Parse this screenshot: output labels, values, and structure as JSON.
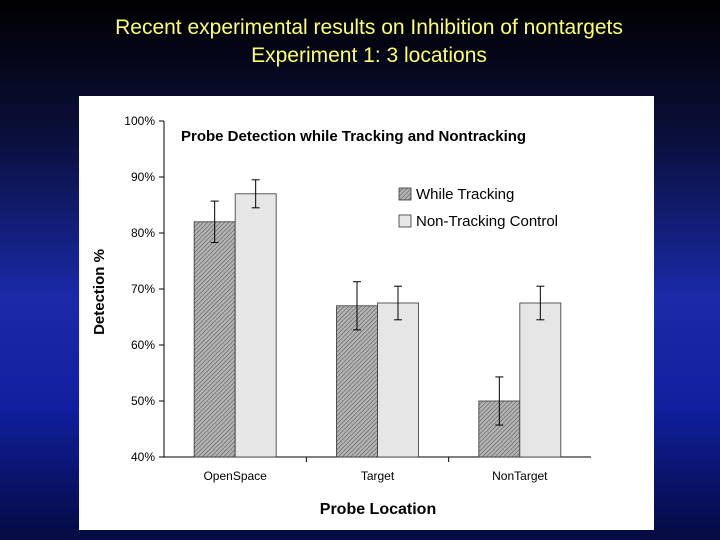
{
  "slide": {
    "title_line1": "Recent experimental results on Inhibition of nontargets",
    "title_line2": "Experiment 1:  3 locations"
  },
  "colors": {
    "title_text": "#ffff66",
    "while_tracking": "#8c8c8c",
    "non_tracking": "#e6e6e6"
  },
  "chart_data": {
    "type": "bar",
    "title": "Probe Detection while Tracking and Nontracking",
    "xlabel": "Probe Location",
    "ylabel": "Detection %",
    "categories": [
      "OpenSpace",
      "Target",
      "NonTarget"
    ],
    "ylim": [
      40,
      100
    ],
    "yticks": [
      40,
      50,
      60,
      70,
      80,
      90,
      100
    ],
    "ytick_labels": [
      "40%",
      "50%",
      "60%",
      "70%",
      "80%",
      "90%",
      "100%"
    ],
    "grid": false,
    "legend_position": "top-right",
    "series": [
      {
        "name": "While Tracking",
        "pattern": "hatched",
        "values": [
          82,
          67,
          50
        ],
        "error": [
          3.7,
          4.3,
          4.3
        ]
      },
      {
        "name": "Non-Tracking Control",
        "pattern": "solid",
        "values": [
          87,
          67.5,
          67.5
        ],
        "error": [
          2.5,
          3,
          3
        ]
      }
    ]
  }
}
